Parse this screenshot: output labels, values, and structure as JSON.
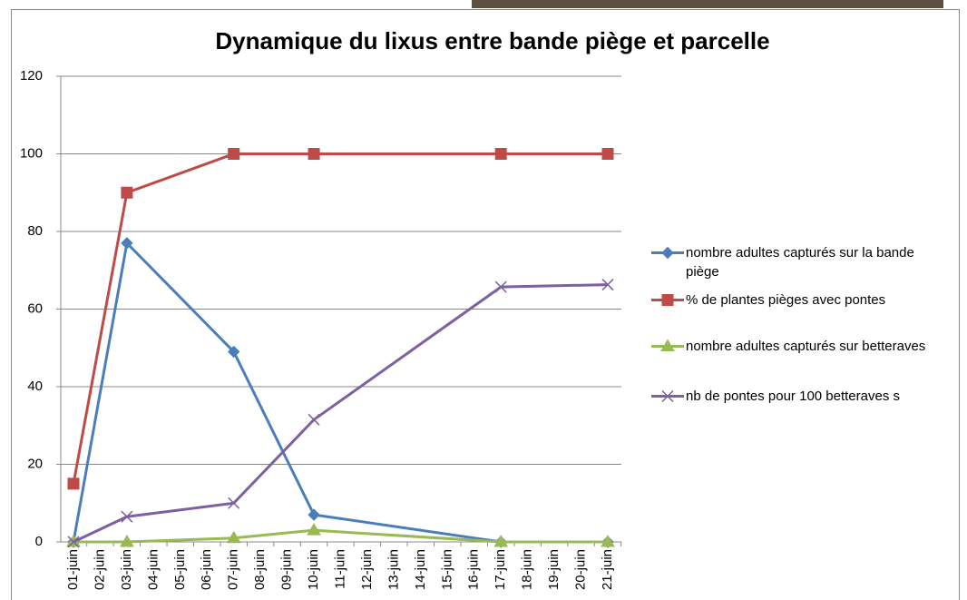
{
  "chart_data": {
    "type": "line",
    "title": "Dynamique du lixus entre bande piège et parcelle",
    "x": [
      1,
      3,
      7,
      10,
      17,
      21
    ],
    "xlim": [
      1,
      21
    ],
    "xticks": [
      {
        "value": 1,
        "label": "01-juin"
      },
      {
        "value": 2,
        "label": "02-juin"
      },
      {
        "value": 3,
        "label": "03-juin"
      },
      {
        "value": 4,
        "label": "04-juin"
      },
      {
        "value": 5,
        "label": "05-juin"
      },
      {
        "value": 6,
        "label": "06-juin"
      },
      {
        "value": 7,
        "label": "07-juin"
      },
      {
        "value": 8,
        "label": "08-juin"
      },
      {
        "value": 9,
        "label": "09-juin"
      },
      {
        "value": 10,
        "label": "10-juin"
      },
      {
        "value": 11,
        "label": "11-juin"
      },
      {
        "value": 12,
        "label": "12-juin"
      },
      {
        "value": 13,
        "label": "13-juin"
      },
      {
        "value": 14,
        "label": "14-juin"
      },
      {
        "value": 15,
        "label": "15-juin"
      },
      {
        "value": 16,
        "label": "16-juin"
      },
      {
        "value": 17,
        "label": "17-juin"
      },
      {
        "value": 18,
        "label": "18-juin"
      },
      {
        "value": 19,
        "label": "19-juin"
      },
      {
        "value": 20,
        "label": "20-juin"
      },
      {
        "value": 21,
        "label": "21-juin"
      }
    ],
    "ylim": [
      0,
      120
    ],
    "yticks": [
      0,
      20,
      40,
      60,
      80,
      100,
      120
    ],
    "grid": true,
    "series": [
      {
        "name": "nombre adultes capturés sur la bande piège",
        "color": "#4a7ebb",
        "marker": "diamond",
        "values": [
          0,
          77,
          49,
          7,
          0,
          0
        ]
      },
      {
        "name": "% de plantes pièges avec pontes",
        "color": "#be4b48",
        "marker": "square",
        "values": [
          15,
          90,
          100,
          100,
          100,
          100
        ]
      },
      {
        "name": "nombre adultes capturés sur betteraves",
        "color": "#98b954",
        "marker": "triangle",
        "values": [
          0,
          0,
          1,
          3,
          0,
          0
        ]
      },
      {
        "name": "nb de pontes pour 100 betteraves s",
        "color": "#7d60a0",
        "marker": "x",
        "values": [
          0,
          6.5,
          10,
          31.5,
          65.7,
          66.3
        ]
      }
    ]
  }
}
